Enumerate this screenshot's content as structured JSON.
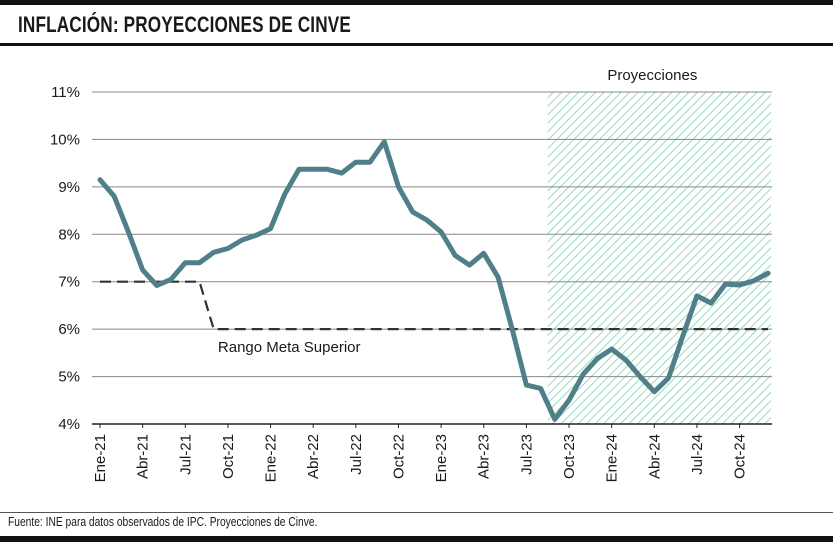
{
  "title": "INFLACIÓN: PROYECCIONES DE CINVE",
  "footnote": "Fuente: INE para datos observados de IPC. Proyecciones de Cinve.",
  "colors": {
    "line": "#4f7f88",
    "reference": "#333333",
    "projection_hatch": "#7fcfb0",
    "grid": "#888888"
  },
  "chart_data": {
    "type": "line",
    "title": "INFLACIÓN: PROYECCIONES DE CINVE",
    "xlabel": "",
    "ylabel": "",
    "ylim": [
      4,
      11
    ],
    "yticks": [
      4,
      5,
      6,
      7,
      8,
      9,
      10,
      11
    ],
    "ytick_labels": [
      "4%",
      "5%",
      "6%",
      "7%",
      "8%",
      "9%",
      "10%",
      "11%"
    ],
    "y_unit": "%",
    "grid": "horizontal",
    "x": [
      "2021-01",
      "2021-02",
      "2021-03",
      "2021-04",
      "2021-05",
      "2021-06",
      "2021-07",
      "2021-08",
      "2021-09",
      "2021-10",
      "2021-11",
      "2021-12",
      "2022-01",
      "2022-02",
      "2022-03",
      "2022-04",
      "2022-05",
      "2022-06",
      "2022-07",
      "2022-08",
      "2022-09",
      "2022-10",
      "2022-11",
      "2022-12",
      "2023-01",
      "2023-02",
      "2023-03",
      "2023-04",
      "2023-05",
      "2023-06",
      "2023-07",
      "2023-08",
      "2023-09",
      "2023-10",
      "2023-11",
      "2023-12",
      "2024-01",
      "2024-02",
      "2024-03",
      "2024-04",
      "2024-05",
      "2024-06",
      "2024-07",
      "2024-08",
      "2024-09",
      "2024-10",
      "2024-11",
      "2024-12"
    ],
    "xtick_labels": [
      "Ene-21",
      "Abr-21",
      "Jul-21",
      "Oct-21",
      "Ene-22",
      "Abr-22",
      "Jul-22",
      "Oct-22",
      "Ene-23",
      "Abr-23",
      "Jul-23",
      "Oct-23",
      "Ene-24",
      "Abr-24",
      "Jul-24",
      "Oct-24"
    ],
    "xtick_positions": [
      "2021-01",
      "2021-04",
      "2021-07",
      "2021-10",
      "2022-01",
      "2022-04",
      "2022-07",
      "2022-10",
      "2023-01",
      "2023-04",
      "2023-07",
      "2023-10",
      "2024-01",
      "2024-04",
      "2024-07",
      "2024-10"
    ],
    "series": [
      {
        "values": [
          9.15,
          8.8,
          8.05,
          7.25,
          6.92,
          7.05,
          7.4,
          7.4,
          7.62,
          7.7,
          7.88,
          7.98,
          8.12,
          8.85,
          9.37,
          9.37,
          9.37,
          9.29,
          9.52,
          9.52,
          9.95,
          9.0,
          8.47,
          8.3,
          8.05,
          7.55,
          7.35,
          7.6,
          7.1,
          6.0,
          4.82,
          4.75,
          4.1,
          4.5,
          5.05,
          5.38,
          5.58,
          5.35,
          5.0,
          4.68,
          4.97,
          5.85,
          6.7,
          6.55,
          6.95,
          6.93,
          7.02,
          7.18
        ]
      },
      {
        "label": "Rango Meta Superior",
        "style": "dashed",
        "values": [
          7,
          7,
          7,
          7,
          7,
          7,
          7,
          7,
          6,
          6,
          6,
          6,
          6,
          6,
          6,
          6,
          6,
          6,
          6,
          6,
          6,
          6,
          6,
          6,
          6,
          6,
          6,
          6,
          6,
          6,
          6,
          6,
          6,
          6,
          6,
          6,
          6,
          6,
          6,
          6,
          6,
          6,
          6,
          6,
          6,
          6,
          6,
          6
        ]
      }
    ],
    "annotations": [
      {
        "text": "Proyecciones",
        "start": "2023-09",
        "end": "2024-12"
      },
      {
        "text": "Rango Meta Superior",
        "x": "2021-10",
        "y": 6
      }
    ]
  }
}
